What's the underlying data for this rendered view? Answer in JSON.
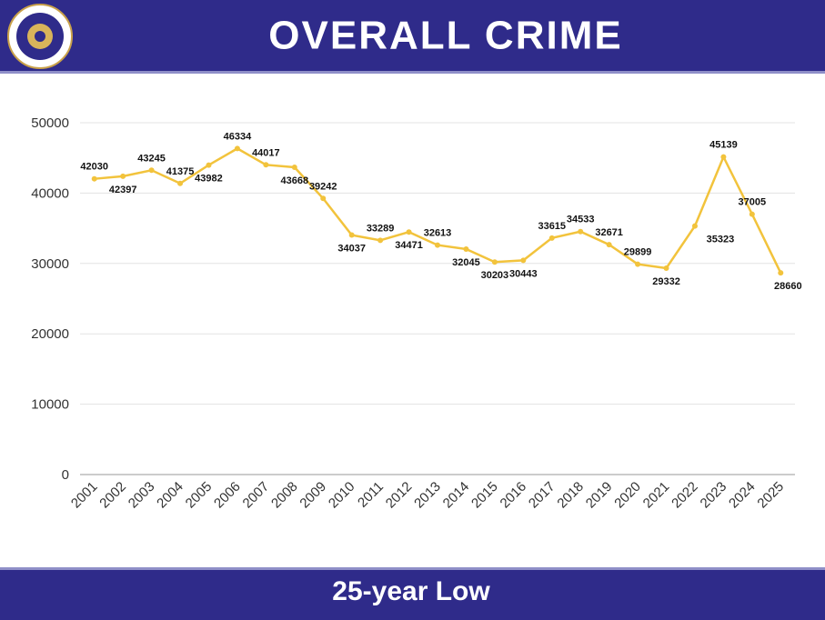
{
  "chart_data": {
    "type": "line",
    "title": "OVERALL CRIME",
    "annotation": "25-year Low",
    "categories": [
      "2001",
      "2002",
      "2003",
      "2004",
      "2005",
      "2006",
      "2007",
      "2008",
      "2009",
      "2010",
      "2011",
      "2012",
      "2013",
      "2014",
      "2015",
      "2016",
      "2017",
      "2018",
      "2019",
      "2020",
      "2021",
      "2022",
      "2023",
      "2024",
      "2025"
    ],
    "values": [
      42030,
      42397,
      43245,
      41375,
      43982,
      46334,
      44017,
      43668,
      39242,
      34037,
      33289,
      34471,
      32613,
      32045,
      30203,
      30443,
      33615,
      34533,
      32671,
      29899,
      29332,
      35323,
      45139,
      37005,
      28660
    ],
    "color": "#f2c33c",
    "ylim": [
      0,
      50000
    ],
    "yticks": [
      0,
      10000,
      20000,
      30000,
      40000,
      50000
    ],
    "grid": true
  }
}
